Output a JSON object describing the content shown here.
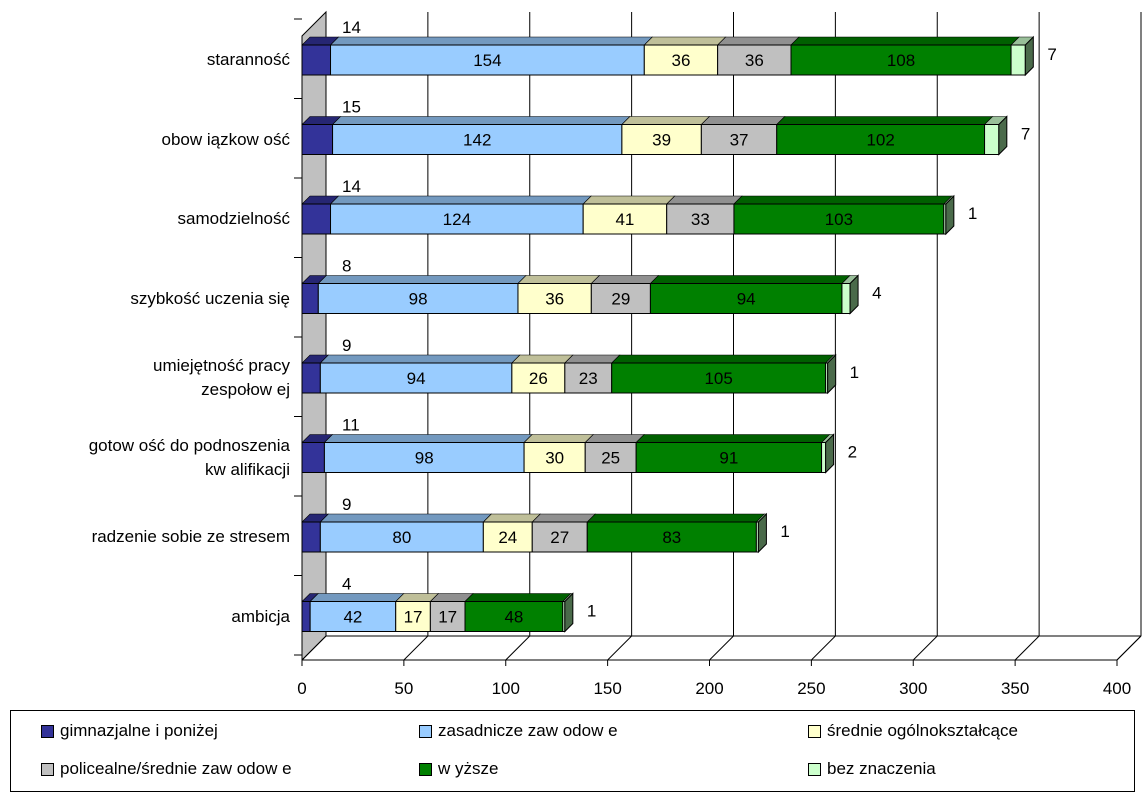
{
  "chart_data": {
    "type": "bar",
    "orientation": "horizontal",
    "stacked": true,
    "categories": [
      "staranność",
      "obow iązkow ość",
      "samodzielność",
      "szybkość uczenia się",
      "umiejętność pracy\nzespołow ej",
      "gotow ość do podnoszenia\nkw alifikacji",
      "radzenie sobie ze stresem",
      "ambicja"
    ],
    "series": [
      {
        "name": "gimnazjalne i poniżej",
        "color": "#333399",
        "values": [
          14,
          15,
          14,
          8,
          9,
          11,
          9,
          4
        ]
      },
      {
        "name": "zasadnicze zaw odow e",
        "color": "#99CCFF",
        "values": [
          154,
          142,
          124,
          98,
          94,
          98,
          80,
          42
        ]
      },
      {
        "name": "średnie ogólnokształcące",
        "color": "#FFFFCC",
        "values": [
          36,
          39,
          41,
          36,
          26,
          30,
          24,
          17
        ]
      },
      {
        "name": "policealne/średnie zaw odow e",
        "color": "#C0C0C0",
        "values": [
          36,
          37,
          33,
          29,
          23,
          25,
          27,
          17
        ]
      },
      {
        "name": "w yższe",
        "color": "#008000",
        "values": [
          108,
          102,
          103,
          94,
          105,
          91,
          83,
          48
        ]
      },
      {
        "name": "bez znaczenia",
        "color": "#CCFFCC",
        "values": [
          7,
          7,
          1,
          4,
          1,
          2,
          1,
          1
        ]
      }
    ],
    "x_ticks": [
      "0",
      "50",
      "100",
      "150",
      "200",
      "250",
      "300",
      "350",
      "400"
    ],
    "xlim": [
      0,
      400
    ],
    "grid": true,
    "legend_position": "bottom"
  }
}
